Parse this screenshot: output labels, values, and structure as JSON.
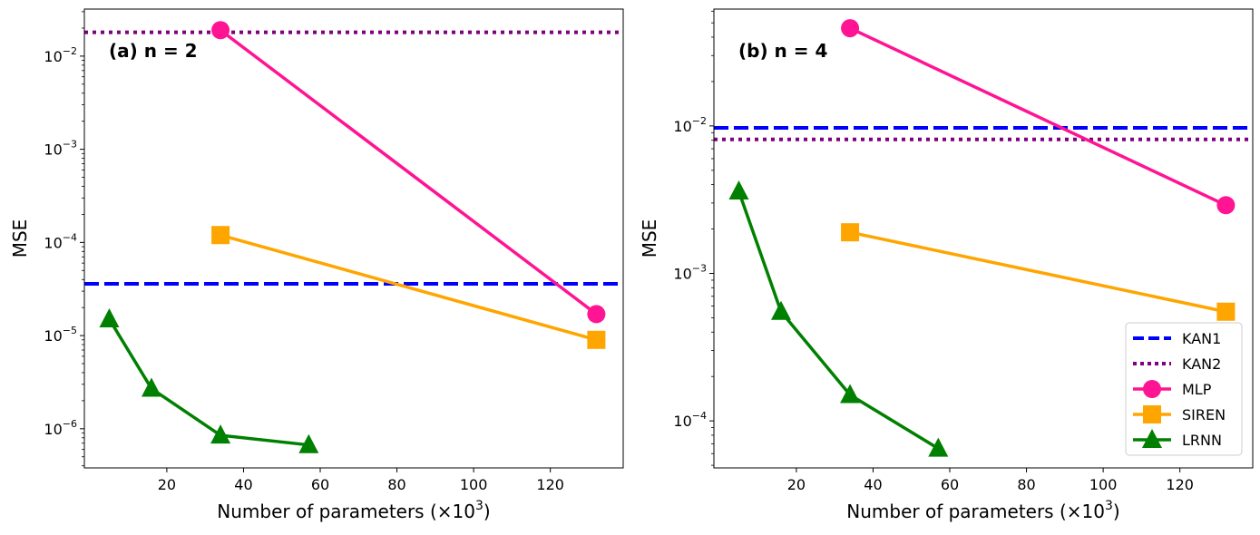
{
  "chart_data": [
    {
      "type": "line",
      "title": "(a) n = 2",
      "xlabel": "Number of parameters (×10",
      "xlabel_sup": "3",
      "xlabel_end": ")",
      "ylabel": "MSE",
      "yscale": "log",
      "xlim": [
        -1.5,
        139
      ],
      "ylim": [
        3.8e-07,
        0.032
      ],
      "xticks": [
        20,
        40,
        60,
        80,
        100,
        120
      ],
      "yticks": [
        {
          "value": 1e-06,
          "base": "10",
          "exp": "−6"
        },
        {
          "value": 1e-05,
          "base": "10",
          "exp": "−5"
        },
        {
          "value": 0.0001,
          "base": "10",
          "exp": "−4"
        },
        {
          "value": 0.001,
          "base": "10",
          "exp": "−3"
        },
        {
          "value": 0.01,
          "base": "10",
          "exp": "−2"
        }
      ],
      "grid": false,
      "hlines": [
        {
          "name": "KAN1",
          "y": 3.6e-05,
          "color": "#0000ff",
          "style": "dashed"
        },
        {
          "name": "KAN2",
          "y": 0.018,
          "color": "#800080",
          "style": "dotted"
        }
      ],
      "series": [
        {
          "name": "MLP",
          "color": "#ff1493",
          "marker": "circle",
          "x": [
            34,
            132
          ],
          "y": [
            0.019,
            1.7e-05
          ]
        },
        {
          "name": "SIREN",
          "color": "#ffa500",
          "marker": "square",
          "x": [
            34,
            132
          ],
          "y": [
            0.00012,
            9e-06
          ]
        },
        {
          "name": "LRNN",
          "color": "#008000",
          "marker": "triangle",
          "x": [
            5,
            16,
            34,
            57
          ],
          "y": [
            1.5e-05,
            2.7e-06,
            8.5e-07,
            6.7e-07
          ]
        }
      ]
    },
    {
      "type": "line",
      "title": "(b) n = 4",
      "xlabel": "Number of parameters (×10",
      "xlabel_sup": "3",
      "xlabel_end": ")",
      "ylabel": "MSE",
      "yscale": "log",
      "xlim": [
        -1.5,
        139
      ],
      "ylim": [
        4.8e-05,
        0.062
      ],
      "xticks": [
        20,
        40,
        60,
        80,
        100,
        120
      ],
      "yticks": [
        {
          "value": 0.0001,
          "base": "10",
          "exp": "−4"
        },
        {
          "value": 0.001,
          "base": "10",
          "exp": "−3"
        },
        {
          "value": 0.01,
          "base": "10",
          "exp": "−2"
        }
      ],
      "grid": false,
      "legend_position": "lower-right",
      "hlines": [
        {
          "name": "KAN1",
          "y": 0.0097,
          "color": "#0000ff",
          "style": "dashed"
        },
        {
          "name": "KAN2",
          "y": 0.0081,
          "color": "#800080",
          "style": "dotted"
        }
      ],
      "series": [
        {
          "name": "MLP",
          "color": "#ff1493",
          "marker": "circle",
          "x": [
            34,
            132
          ],
          "y": [
            0.046,
            0.0029
          ]
        },
        {
          "name": "SIREN",
          "color": "#ffa500",
          "marker": "square",
          "x": [
            34,
            132
          ],
          "y": [
            0.0019,
            0.00055
          ]
        },
        {
          "name": "LRNN",
          "color": "#008000",
          "marker": "triangle",
          "x": [
            5,
            16,
            34,
            57
          ],
          "y": [
            0.0036,
            0.00055,
            0.00015,
            6.5e-05
          ]
        }
      ]
    }
  ]
}
